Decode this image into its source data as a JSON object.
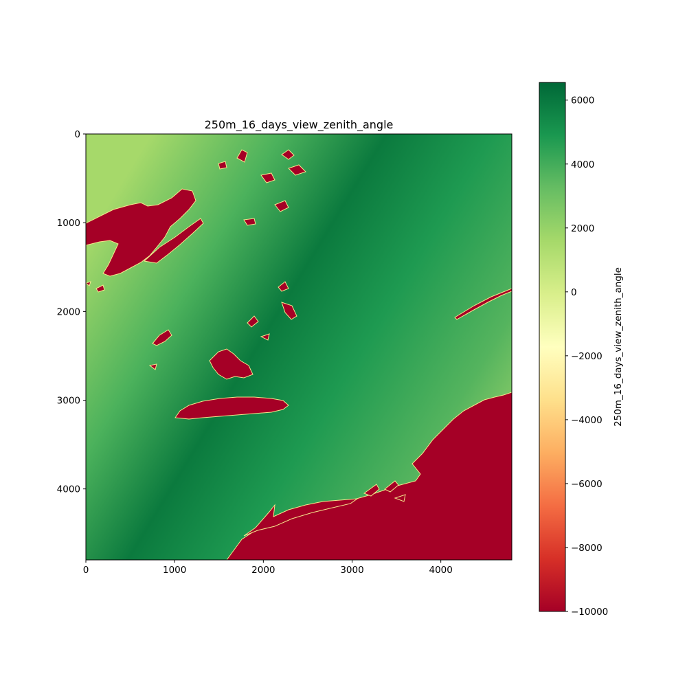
{
  "chart_data": {
    "type": "heatmap",
    "title": "250m_16_days_view_zenith_angle",
    "xlabel": "",
    "ylabel": "",
    "xlim": [
      0,
      4800
    ],
    "ylim": [
      4800,
      0
    ],
    "x_ticks": [
      0,
      1000,
      2000,
      3000,
      4000
    ],
    "y_ticks": [
      0,
      1000,
      2000,
      3000,
      4000
    ],
    "colorbar": {
      "label": "250m_16_days_view_zenith_angle",
      "colormap": "RdYlGn",
      "vmin": -10000,
      "vmax": 6553,
      "ticks": [
        6000,
        4000,
        2000,
        0,
        -2000,
        -4000,
        -6000,
        -8000,
        -10000
      ]
    },
    "fill_value": -10000,
    "field": {
      "description_values": "view zenith angle increasing from the diagonal band (upper-middle) toward the left and right edges",
      "max_value": 6000,
      "min_value": 1500
    },
    "colors": {
      "nodata": "#a50026",
      "low": "#a6d96a",
      "high": "#006837"
    }
  }
}
